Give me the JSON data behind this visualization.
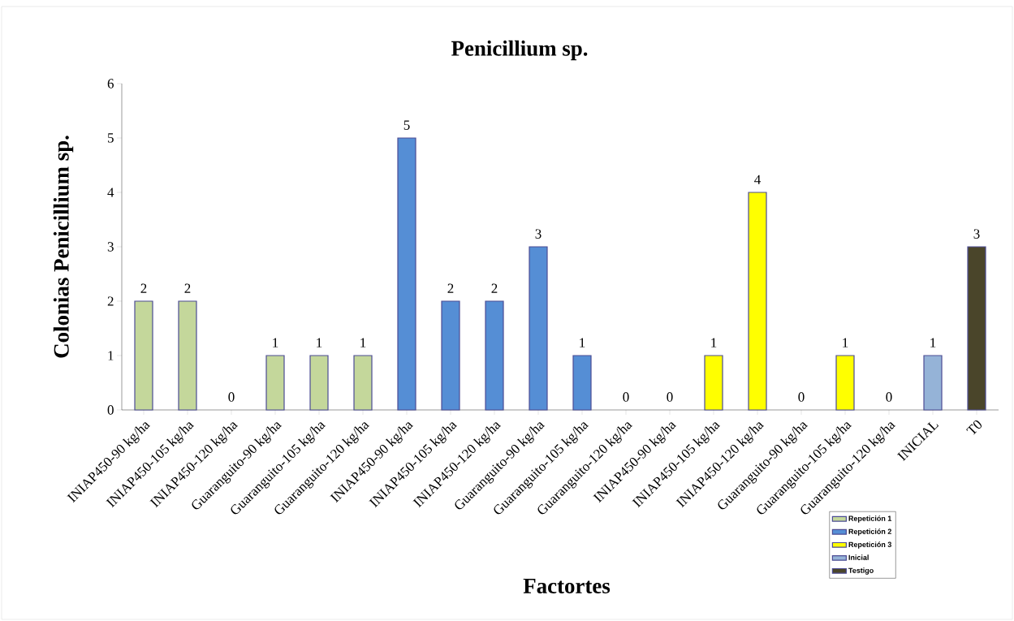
{
  "chart_data": {
    "type": "bar",
    "title": "Penicillium sp.",
    "xlabel": "Factortes",
    "ylabel": "Colonias Penicillium sp.",
    "categories": [
      "INIAP450-90 kg/ha",
      "INIAP450-105 kg/ha",
      "INIAP450-120 kg/ha",
      "Guaranguito-90 kg/ha",
      "Guaranguito-105 kg/ha",
      "Guaranguito-120 kg/ha",
      "INIAP450-90 kg/ha",
      "INIAP450-105 kg/ha",
      "INIAP450-120 kg/ha",
      "Guaranguito-90 kg/ha",
      "Guaranguito-105 kg/ha",
      "Guaranguito-120 kg/ha",
      "INIAP450-90 kg/ha",
      "INIAP450-105 kg/ha",
      "INIAP450-120 kg/ha",
      "Guaranguito-90 kg/ha",
      "Guaranguito-105 kg/ha",
      "Guaranguito-120 kg/ha",
      "INICIAL",
      "T0"
    ],
    "series": [
      {
        "name": "Repetición 1",
        "color": "#c4d79b",
        "values": [
          2,
          2,
          0,
          1,
          1,
          1,
          null,
          null,
          null,
          null,
          null,
          null,
          null,
          null,
          null,
          null,
          null,
          null,
          null,
          null
        ]
      },
      {
        "name": "Repetición 2",
        "color": "#558ed5",
        "values": [
          null,
          null,
          null,
          null,
          null,
          null,
          5,
          2,
          2,
          3,
          1,
          0,
          null,
          null,
          null,
          null,
          null,
          null,
          null,
          null
        ]
      },
      {
        "name": "Repetición 3",
        "color": "#ffff00",
        "values": [
          null,
          null,
          null,
          null,
          null,
          null,
          null,
          null,
          null,
          null,
          null,
          null,
          0,
          1,
          4,
          0,
          1,
          0,
          null,
          null
        ]
      },
      {
        "name": "Inicial",
        "color": "#95b3d7",
        "values": [
          null,
          null,
          null,
          null,
          null,
          null,
          null,
          null,
          null,
          null,
          null,
          null,
          null,
          null,
          null,
          null,
          null,
          null,
          1,
          null
        ]
      },
      {
        "name": "Testigo",
        "color": "#4a452a",
        "values": [
          null,
          null,
          null,
          null,
          null,
          null,
          null,
          null,
          null,
          null,
          null,
          null,
          null,
          null,
          null,
          null,
          null,
          null,
          null,
          3
        ]
      }
    ],
    "ylim": [
      0,
      6
    ],
    "yticks": [
      0,
      1,
      2,
      3,
      4,
      5,
      6
    ],
    "data_labels": true,
    "legend": "bottom right"
  }
}
